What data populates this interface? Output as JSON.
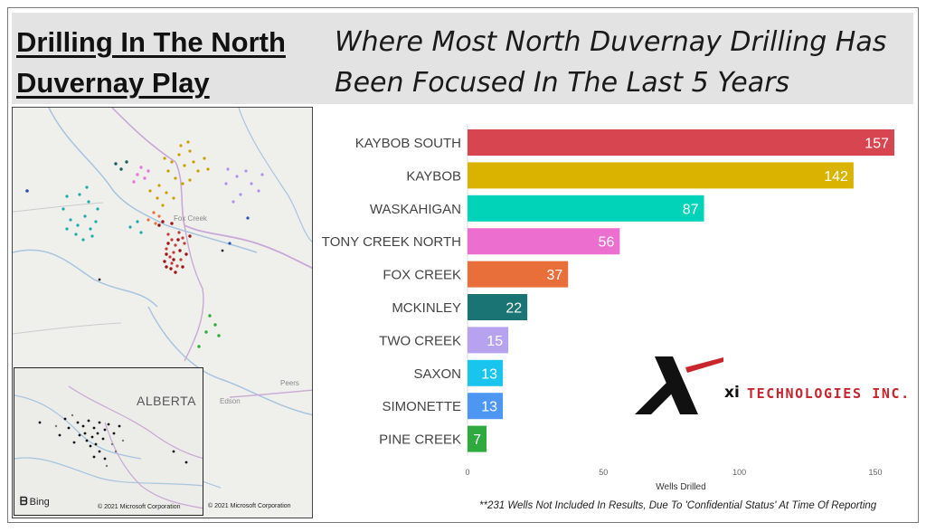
{
  "header": {
    "title": "Drilling In The North Duvernay Play",
    "subtitle": "Where Most North Duvernay Drilling Has Been Focused In The Last 5 Years"
  },
  "map": {
    "inset_label": "ALBERTA",
    "bing_label": "Bing",
    "copyright_inset": "© 2021 Microsoft Corporation",
    "copyright_main": "© 2021 Microsoft Corporation",
    "place_edson": "Edson",
    "place_peers": "Peers",
    "place_foxcreek": "Fox Creek"
  },
  "chart_data": {
    "type": "bar",
    "orientation": "horizontal",
    "categories": [
      "KAYBOB SOUTH",
      "KAYBOB",
      "WASKAHIGAN",
      "TONY CREEK NORTH",
      "FOX CREEK",
      "MCKINLEY",
      "TWO CREEK",
      "SAXON",
      "SIMONETTE",
      "PINE CREEK"
    ],
    "values": [
      157,
      142,
      87,
      56,
      37,
      22,
      15,
      13,
      13,
      7
    ],
    "colors": [
      "#d64550",
      "#d9b300",
      "#00d3b8",
      "#ec6fd0",
      "#e86f3a",
      "#1b7474",
      "#b7a2f0",
      "#19c4ee",
      "#4d97f2",
      "#2eaa3e"
    ],
    "xlabel": "Wells Drilled",
    "ylabel": "",
    "xlim": [
      0,
      160
    ],
    "xticks": [
      0,
      50,
      100,
      150
    ],
    "grid": false
  },
  "logo": {
    "mark": "xi",
    "text": "TECHNOLOGIES INC."
  },
  "footnote": "**231 Wells Not Included In Results, Due To 'Confidential Status' At Time Of Reporting"
}
